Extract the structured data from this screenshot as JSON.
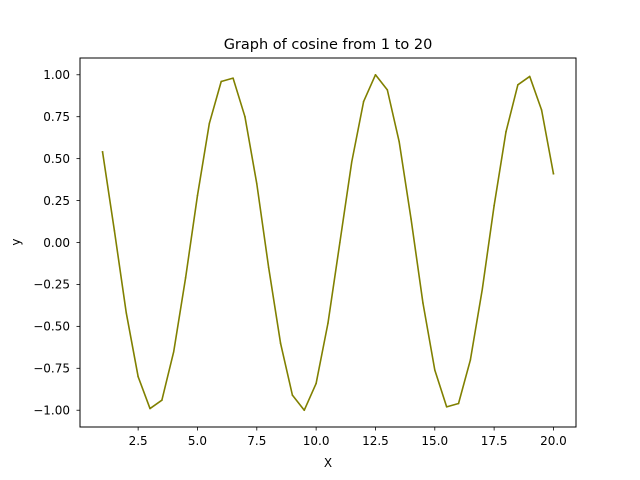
{
  "chart_data": {
    "type": "line",
    "title": "Graph of cosine from 1 to 20",
    "xlabel": "X",
    "ylabel": "y",
    "xlim": [
      0.05,
      20.95
    ],
    "ylim": [
      -1.1,
      1.1
    ],
    "grid": false,
    "x_ticks": [
      2.5,
      5.0,
      7.5,
      10.0,
      12.5,
      15.0,
      17.5,
      20.0
    ],
    "x_tick_labels": [
      "2.5",
      "5.0",
      "7.5",
      "10.0",
      "12.5",
      "15.0",
      "17.5",
      "20.0"
    ],
    "y_ticks": [
      1.0,
      0.75,
      0.5,
      0.25,
      0.0,
      -0.25,
      -0.5,
      -0.75,
      -1.0
    ],
    "y_tick_labels": [
      "1.00",
      "0.75",
      "0.50",
      "0.25",
      "0.00",
      "−0.25",
      "−0.50",
      "−0.75",
      "−1.00"
    ],
    "series": [
      {
        "color": "#808000",
        "x": [
          1.0,
          1.5,
          2.0,
          2.5,
          3.0,
          3.5,
          4.0,
          4.5,
          5.0,
          5.5,
          6.0,
          6.5,
          7.0,
          7.5,
          8.0,
          8.5,
          9.0,
          9.5,
          10.0,
          10.5,
          11.0,
          11.5,
          12.0,
          12.5,
          13.0,
          13.5,
          14.0,
          14.5,
          15.0,
          15.5,
          16.0,
          16.5,
          17.0,
          17.5,
          18.0,
          18.5,
          19.0,
          19.5,
          20.0
        ],
        "y": [
          0.54,
          0.07,
          -0.42,
          -0.8,
          -0.99,
          -0.94,
          -0.65,
          -0.21,
          0.28,
          0.71,
          0.96,
          0.98,
          0.75,
          0.35,
          -0.15,
          -0.6,
          -0.91,
          -1.0,
          -0.84,
          -0.48,
          0.0,
          0.48,
          0.84,
          1.0,
          0.91,
          0.6,
          0.14,
          -0.36,
          -0.76,
          -0.98,
          -0.96,
          -0.7,
          -0.28,
          0.22,
          0.66,
          0.94,
          0.99,
          0.79,
          0.41
        ]
      }
    ]
  }
}
